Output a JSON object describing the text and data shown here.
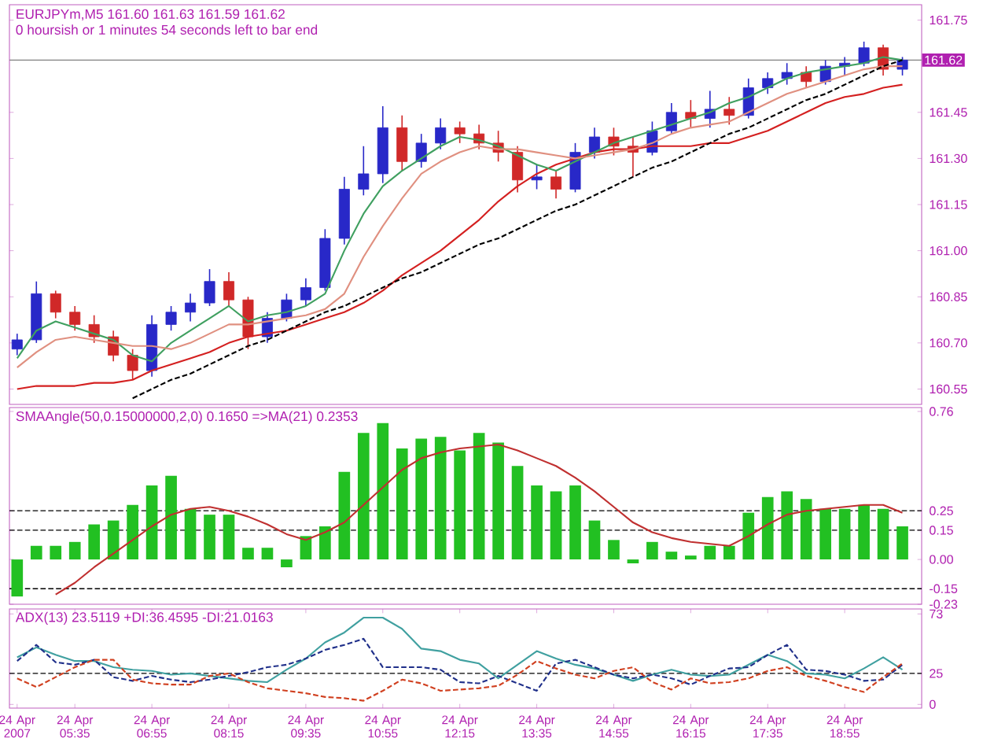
{
  "chart_data": [
    {
      "type": "candlestick",
      "title": "EURJPYm,M5  161.60 161.63 161.59 161.62",
      "subtitle": "0 hoursish or 1 minutes 54 seconds left to bar end",
      "categories": [
        null,
        null,
        null,
        null,
        null,
        null,
        null,
        null,
        null,
        null,
        null,
        null,
        null,
        null,
        null,
        null,
        null,
        null,
        null,
        null,
        null,
        null,
        null,
        null,
        null,
        null,
        null,
        null,
        null,
        null,
        null,
        null,
        null,
        null,
        null,
        null,
        null,
        null,
        null,
        null,
        null,
        null,
        null,
        null,
        null,
        null,
        null
      ],
      "ohlc": [
        [
          160.68,
          160.73,
          160.66,
          160.71
        ],
        [
          160.71,
          160.9,
          160.7,
          160.86
        ],
        [
          160.86,
          160.87,
          160.78,
          160.8
        ],
        [
          160.8,
          160.82,
          160.74,
          160.76
        ],
        [
          160.76,
          160.79,
          160.7,
          160.72
        ],
        [
          160.72,
          160.74,
          160.64,
          160.66
        ],
        [
          160.66,
          160.68,
          160.58,
          160.61
        ],
        [
          160.61,
          160.79,
          160.59,
          160.76
        ],
        [
          160.76,
          160.82,
          160.74,
          160.8
        ],
        [
          160.8,
          160.86,
          160.77,
          160.83
        ],
        [
          160.83,
          160.94,
          160.82,
          160.9
        ],
        [
          160.9,
          160.93,
          160.82,
          160.84
        ],
        [
          160.84,
          160.85,
          160.68,
          160.72
        ],
        [
          160.72,
          160.8,
          160.7,
          160.78
        ],
        [
          160.78,
          160.86,
          160.77,
          160.84
        ],
        [
          160.84,
          160.91,
          160.82,
          160.88
        ],
        [
          160.88,
          161.07,
          160.87,
          161.04
        ],
        [
          161.04,
          161.24,
          161.02,
          161.2
        ],
        [
          161.2,
          161.34,
          161.18,
          161.25
        ],
        [
          161.25,
          161.47,
          161.22,
          161.4
        ],
        [
          161.4,
          161.44,
          161.26,
          161.29
        ],
        [
          161.29,
          161.38,
          161.27,
          161.35
        ],
        [
          161.35,
          161.43,
          161.33,
          161.4
        ],
        [
          161.4,
          161.42,
          161.35,
          161.38
        ],
        [
          161.38,
          161.41,
          161.33,
          161.35
        ],
        [
          161.35,
          161.39,
          161.29,
          161.32
        ],
        [
          161.32,
          161.34,
          161.19,
          161.23
        ],
        [
          161.23,
          161.28,
          161.2,
          161.24
        ],
        [
          161.24,
          161.26,
          161.17,
          161.2
        ],
        [
          161.2,
          161.35,
          161.19,
          161.32
        ],
        [
          161.32,
          161.4,
          161.3,
          161.37
        ],
        [
          161.37,
          161.4,
          161.31,
          161.34
        ],
        [
          161.34,
          161.37,
          161.24,
          161.32
        ],
        [
          161.32,
          161.42,
          161.31,
          161.39
        ],
        [
          161.39,
          161.48,
          161.38,
          161.45
        ],
        [
          161.45,
          161.49,
          161.4,
          161.43
        ],
        [
          161.43,
          161.52,
          161.4,
          161.46
        ],
        [
          161.46,
          161.5,
          161.41,
          161.44
        ],
        [
          161.44,
          161.56,
          161.43,
          161.53
        ],
        [
          161.53,
          161.58,
          161.51,
          161.56
        ],
        [
          161.56,
          161.61,
          161.54,
          161.58
        ],
        [
          161.58,
          161.6,
          161.53,
          161.55
        ],
        [
          161.55,
          161.62,
          161.54,
          161.6
        ],
        [
          161.6,
          161.63,
          161.57,
          161.61
        ],
        [
          161.61,
          161.68,
          161.6,
          161.66
        ],
        [
          161.66,
          161.67,
          161.57,
          161.59
        ],
        [
          161.59,
          161.63,
          161.57,
          161.62
        ]
      ],
      "colors": [
        "#2828c8",
        "#2828c8",
        "#d02828",
        "#d02828",
        "#d02828",
        "#d02828",
        "#d02828",
        "#2828c8",
        "#2828c8",
        "#2828c8",
        "#2828c8",
        "#d02828",
        "#d02828",
        "#2828c8",
        "#2828c8",
        "#2828c8",
        "#2828c8",
        "#2828c8",
        "#2828c8",
        "#2828c8",
        "#d02828",
        "#2828c8",
        "#2828c8",
        "#d02828",
        "#d02828",
        "#d02828",
        "#d02828",
        "#2828c8",
        "#d02828",
        "#2828c8",
        "#2828c8",
        "#d02828",
        "#d02828",
        "#2828c8",
        "#2828c8",
        "#d02828",
        "#2828c8",
        "#d02828",
        "#2828c8",
        "#2828c8",
        "#2828c8",
        "#d02828",
        "#2828c8",
        "#2828c8",
        "#2828c8",
        "#d02828",
        "#2828c8"
      ],
      "series": [
        {
          "type": "line",
          "color": "#d42020",
          "values": [
            160.55,
            160.56,
            160.56,
            160.56,
            160.57,
            160.57,
            160.58,
            160.61,
            160.63,
            160.65,
            160.67,
            160.7,
            160.72,
            160.73,
            160.74,
            160.76,
            160.78,
            160.8,
            160.83,
            160.87,
            160.92,
            160.96,
            161.0,
            161.05,
            161.1,
            161.16,
            161.21,
            161.25,
            161.28,
            161.3,
            161.32,
            161.33,
            161.33,
            161.34,
            161.34,
            161.34,
            161.35,
            161.35,
            161.37,
            161.39,
            161.42,
            161.45,
            161.48,
            161.5,
            161.51,
            161.53,
            161.54
          ]
        },
        {
          "type": "line",
          "color": "#40a060",
          "values": [
            160.65,
            160.74,
            160.77,
            160.75,
            160.73,
            160.71,
            160.66,
            160.64,
            160.7,
            160.74,
            160.78,
            160.82,
            160.77,
            160.79,
            160.8,
            160.82,
            160.86,
            161.0,
            161.12,
            161.21,
            161.26,
            161.3,
            161.34,
            161.37,
            161.36,
            161.34,
            161.31,
            161.28,
            161.26,
            161.29,
            161.32,
            161.35,
            161.37,
            161.39,
            161.41,
            161.43,
            161.45,
            161.48,
            161.5,
            161.53,
            161.56,
            161.58,
            161.59,
            161.6,
            161.61,
            161.63,
            161.62
          ]
        },
        {
          "type": "line",
          "color": "#e09080",
          "values": [
            160.62,
            160.67,
            160.71,
            160.72,
            160.71,
            160.7,
            160.69,
            160.69,
            160.68,
            160.7,
            160.73,
            160.76,
            160.76,
            160.77,
            160.78,
            160.79,
            160.81,
            160.86,
            160.98,
            161.08,
            161.17,
            161.25,
            161.29,
            161.32,
            161.34,
            161.33,
            161.33,
            161.32,
            161.31,
            161.3,
            161.31,
            161.32,
            161.33,
            161.35,
            161.38,
            161.4,
            161.41,
            161.42,
            161.45,
            161.48,
            161.51,
            161.53,
            161.55,
            161.57,
            161.59,
            161.6,
            161.6
          ]
        },
        {
          "type": "line",
          "color": "#000000",
          "line_style": "dashed",
          "values": [
            null,
            null,
            null,
            null,
            null,
            null,
            160.52,
            160.55,
            160.58,
            160.6,
            160.63,
            160.66,
            160.69,
            160.71,
            160.74,
            160.77,
            160.8,
            160.82,
            160.85,
            160.88,
            160.91,
            160.93,
            160.96,
            160.99,
            161.02,
            161.04,
            161.07,
            161.1,
            161.13,
            161.15,
            161.18,
            161.21,
            161.24,
            161.27,
            161.29,
            161.32,
            161.35,
            161.38,
            161.4,
            161.43,
            161.46,
            161.49,
            161.51,
            161.54,
            161.57,
            161.6,
            161.62
          ]
        }
      ],
      "ylim": [
        160.5,
        161.8
      ],
      "yticks": [
        {
          "value": 161.75,
          "label": "161.75"
        },
        {
          "value": 161.45,
          "label": "161.45"
        },
        {
          "value": 161.3,
          "label": "161.30"
        },
        {
          "value": 161.15,
          "label": "161.15"
        },
        {
          "value": 161.0,
          "label": "161.00"
        },
        {
          "value": 160.85,
          "label": "160.85"
        },
        {
          "value": 160.7,
          "label": "160.70"
        },
        {
          "value": 160.55,
          "label": "160.55"
        }
      ],
      "ref_lines": [
        {
          "axis": "y",
          "value": 161.62,
          "label": "161.62",
          "color": "#808080",
          "line_style": "solid"
        }
      ],
      "tick_labels": "y"
    },
    {
      "type": "bar",
      "title": "SMAAngle(50,0.15000000,2,0) 0.1650  =>MA(21) 0.2353",
      "color": "#22c022",
      "categories": [
        null,
        null,
        null,
        null,
        null,
        null,
        null,
        null,
        null,
        null,
        null,
        null,
        null,
        null,
        null,
        null,
        null,
        null,
        null,
        null,
        null,
        null,
        null,
        null,
        null,
        null,
        null,
        null,
        null,
        null,
        null,
        null,
        null,
        null,
        null,
        null,
        null,
        null,
        null,
        null,
        null,
        null,
        null,
        null,
        null,
        null,
        null
      ],
      "values": [
        -0.19,
        0.07,
        0.07,
        0.09,
        0.18,
        0.2,
        0.28,
        0.38,
        0.43,
        0.26,
        0.23,
        0.23,
        0.06,
        0.06,
        -0.04,
        0.12,
        0.17,
        0.45,
        0.65,
        0.7,
        0.57,
        0.62,
        0.63,
        0.56,
        0.65,
        0.6,
        0.48,
        0.38,
        0.35,
        0.38,
        0.2,
        0.1,
        -0.02,
        0.09,
        0.04,
        0.02,
        0.07,
        0.07,
        0.24,
        0.32,
        0.35,
        0.31,
        0.26,
        0.26,
        0.28,
        0.26,
        0.17
      ],
      "series": [
        {
          "type": "line",
          "color": "#c03030",
          "values": [
            null,
            null,
            -0.18,
            -0.12,
            -0.04,
            0.03,
            0.1,
            0.17,
            0.23,
            0.26,
            0.27,
            0.25,
            0.22,
            0.18,
            0.13,
            0.1,
            0.14,
            0.19,
            0.28,
            0.37,
            0.46,
            0.52,
            0.55,
            0.57,
            0.58,
            0.59,
            0.56,
            0.52,
            0.48,
            0.42,
            0.35,
            0.27,
            0.19,
            0.14,
            0.11,
            0.09,
            0.08,
            0.07,
            0.12,
            0.18,
            0.23,
            0.25,
            0.26,
            0.27,
            0.28,
            0.28,
            0.24
          ]
        }
      ],
      "ylim": [
        -0.23,
        0.78
      ],
      "yticks": [
        0.76,
        0.25,
        0.15,
        {
          "value": 0,
          "label": "0.00"
        },
        -0.15,
        -0.23
      ],
      "ref_lines": [
        {
          "axis": "y",
          "value": 0.25,
          "color": "#000000",
          "line_style": "dashed"
        },
        {
          "axis": "y",
          "value": 0.15,
          "color": "#000000",
          "line_style": "dashed"
        },
        {
          "axis": "y",
          "value": -0.15,
          "color": "#000000",
          "line_style": "dashed"
        }
      ],
      "tick_labels": "y"
    },
    {
      "type": "line",
      "title": "ADX(13) 23.5119 +DI:36.4595 -DI:21.0163",
      "categories": [
        "24 Apr 2007",
        null,
        null,
        "24 Apr 05:35",
        null,
        null,
        null,
        "24 Apr 06:55",
        null,
        null,
        null,
        "24 Apr 08:15",
        null,
        null,
        null,
        "24 Apr 09:35",
        null,
        null,
        null,
        "24 Apr 10:55",
        null,
        null,
        null,
        "24 Apr 12:15",
        null,
        null,
        null,
        "24 Apr 13:35",
        null,
        null,
        null,
        "24 Apr 14:55",
        null,
        null,
        null,
        "24 Apr 16:15",
        null,
        null,
        null,
        "24 Apr 17:35",
        null,
        null,
        null,
        "24 Apr 18:55",
        null,
        null,
        null
      ],
      "series": [
        {
          "color": "#40a0a0",
          "values": [
            38,
            46,
            40,
            35,
            35,
            30,
            28,
            27,
            24,
            25,
            23,
            21,
            19,
            18,
            28,
            37,
            50,
            58,
            70,
            70,
            61,
            45,
            43,
            36,
            33,
            21,
            32,
            43,
            37,
            32,
            29,
            24,
            19,
            24,
            28,
            24,
            23,
            24,
            32,
            40,
            35,
            25,
            24,
            21,
            29,
            38,
            28
          ]
        },
        {
          "color": "#20308a",
          "line_style": "dashed",
          "values": [
            35,
            48,
            34,
            32,
            36,
            22,
            19,
            23,
            20,
            18,
            20,
            23,
            26,
            30,
            32,
            37,
            44,
            48,
            53,
            30,
            30,
            30,
            28,
            18,
            17,
            23,
            17,
            11,
            33,
            36,
            30,
            24,
            21,
            24,
            21,
            16,
            23,
            29,
            30,
            40,
            48,
            28,
            27,
            24,
            19,
            20,
            32
          ]
        },
        {
          "color": "#d04020",
          "line_style": "dashed",
          "values": [
            21,
            14,
            22,
            30,
            36,
            36,
            20,
            17,
            16,
            16,
            23,
            25,
            18,
            13,
            11,
            9,
            6,
            5,
            3,
            11,
            20,
            17,
            11,
            12,
            13,
            15,
            24,
            35,
            29,
            24,
            21,
            27,
            30,
            18,
            12,
            21,
            17,
            18,
            21,
            27,
            30,
            23,
            19,
            14,
            10,
            22,
            33
          ]
        }
      ],
      "ylim": [
        -3,
        77
      ],
      "yticks": [
        73,
        25,
        0
      ],
      "ref_lines": [
        {
          "axis": "y",
          "value": 25,
          "color": "#000000",
          "line_style": "dashed"
        }
      ]
    }
  ]
}
